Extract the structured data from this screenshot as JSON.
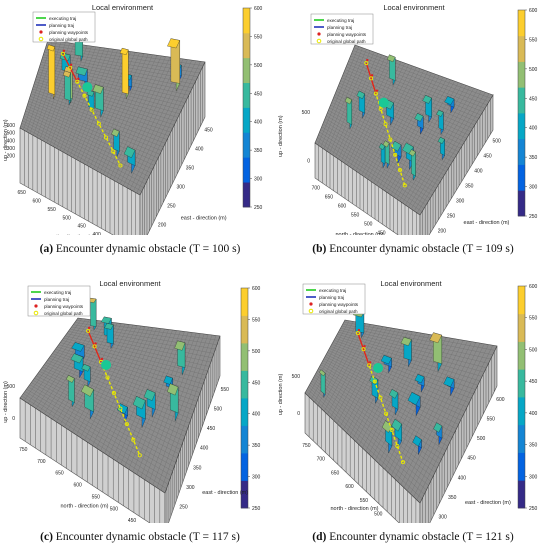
{
  "colors": {
    "exec": "#22cc22",
    "plan": "#2233bb",
    "waypoint": "#dd2222",
    "global": "#e8e800",
    "floor": "#8c8c8c",
    "wall": "#d0d0d0",
    "obstacle": "#19c896"
  },
  "colorbar": {
    "min": 250,
    "max": 600,
    "ticks": [
      250,
      300,
      350,
      400,
      450,
      500,
      550,
      600
    ]
  },
  "legend_labels": [
    "executing traj",
    "planning traj",
    "planning waypoints",
    "original global path"
  ],
  "chart_data": [
    {
      "type": "3d-surface",
      "title": "Local environment",
      "xlabel": "north - direction (m)",
      "ylabel": "east - direction (m)",
      "zlabel": "up - direction (m)",
      "x_ticks": [
        300,
        350,
        400,
        450,
        500,
        550,
        600,
        650
      ],
      "y_ticks": [
        150,
        200,
        250,
        300,
        350,
        400,
        450
      ],
      "z_ticks": [
        200,
        300,
        400,
        500,
        600
      ],
      "caption_letter": "(a)",
      "caption_text": " Encounter dynamic obstacle (T = 100 s)"
    },
    {
      "type": "3d-surface",
      "title": "Local environment",
      "xlabel": "north - direction (m)",
      "ylabel": "east - direction (m)",
      "zlabel": "up - direction (m)",
      "x_ticks": [
        350,
        400,
        450,
        500,
        550,
        600,
        650,
        700
      ],
      "y_ticks": [
        150,
        200,
        250,
        300,
        350,
        400,
        450,
        500
      ],
      "z_ticks": [
        0,
        500
      ],
      "caption_letter": "(b)",
      "caption_text": " Encounter dynamic obstacle (T = 109 s)"
    },
    {
      "type": "3d-surface",
      "title": "Local environment",
      "xlabel": "north - direction (m)",
      "ylabel": "east - direction (m)",
      "zlabel": "up - direction (m)",
      "x_ticks": [
        400,
        450,
        500,
        550,
        600,
        650,
        700,
        750
      ],
      "y_ticks": [
        200,
        250,
        300,
        350,
        400,
        450,
        500,
        550
      ],
      "z_ticks": [
        0,
        500
      ],
      "caption_letter": "(c)",
      "caption_text": " Encounter dynamic obstacle (T = 117 s)"
    },
    {
      "type": "3d-surface",
      "title": "Local environment",
      "xlabel": "north - direction (m)",
      "ylabel": "east - direction (m)",
      "zlabel": "up - direction (m)",
      "x_ticks": [
        400,
        450,
        500,
        550,
        600,
        650,
        700,
        750
      ],
      "y_ticks": [
        250,
        300,
        350,
        400,
        450,
        500,
        550,
        600
      ],
      "z_ticks": [
        0,
        500
      ],
      "caption_letter": "(d)",
      "caption_text": " Encounter dynamic obstacle (T = 121 s)"
    }
  ]
}
